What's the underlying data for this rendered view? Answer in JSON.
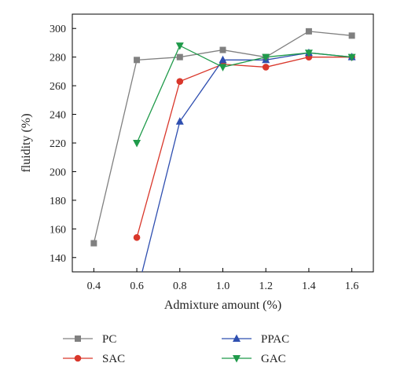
{
  "chart_data": {
    "type": "line",
    "title": "",
    "xlabel": "Admixture amount (%)",
    "ylabel": "fluidity (%)",
    "xlim": [
      0.3,
      1.7
    ],
    "ylim": [
      130,
      310
    ],
    "xticks": [
      "0.4",
      "0.6",
      "0.8",
      "1.0",
      "1.2",
      "1.4",
      "1.6"
    ],
    "yticks": [
      "140",
      "160",
      "180",
      "200",
      "220",
      "240",
      "260",
      "280",
      "300"
    ],
    "grid": false,
    "legend_placement": "bottom",
    "series": [
      {
        "name": "PC",
        "color": "#808080",
        "marker": "square",
        "x": [
          0.4,
          0.6,
          0.8,
          1.0,
          1.2,
          1.4,
          1.6
        ],
        "y": [
          150,
          278,
          280,
          285,
          280,
          298,
          295
        ]
      },
      {
        "name": "SAC",
        "color": "#d9372b",
        "marker": "circle",
        "x": [
          0.6,
          0.8,
          1.0,
          1.2,
          1.4,
          1.6
        ],
        "y": [
          154,
          263,
          275,
          273,
          280,
          280
        ]
      },
      {
        "name": "PPAC",
        "color": "#2f4fb0",
        "marker": "triangle-up",
        "x": [
          0.6,
          0.8,
          1.0,
          1.2,
          1.4,
          1.6
        ],
        "y": [
          115,
          235,
          278,
          278,
          283,
          280
        ]
      },
      {
        "name": "GAC",
        "color": "#1f9a4a",
        "marker": "triangle-down",
        "x": [
          0.6,
          0.8,
          1.0,
          1.2,
          1.4,
          1.6
        ],
        "y": [
          220,
          288,
          273,
          280,
          283,
          280
        ]
      }
    ]
  }
}
